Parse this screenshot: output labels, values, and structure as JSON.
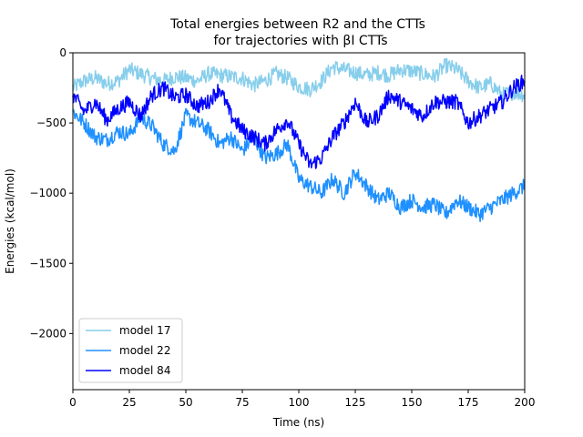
{
  "chart_data": {
    "type": "line",
    "title": "Total energies between R2 and the CTTs",
    "subtitle": "for trajectories with βI CTTs",
    "xlabel": "Time (ns)",
    "ylabel": "Energies (kcal/mol)",
    "xlim": [
      0,
      200
    ],
    "ylim": [
      -2400,
      0
    ],
    "xticks": [
      0,
      25,
      50,
      75,
      100,
      125,
      150,
      175,
      200
    ],
    "yticks": [
      0,
      -500,
      -1000,
      -1500,
      -2000
    ],
    "ytick_labels": [
      "0",
      "−500",
      "−1000",
      "−1500",
      "−2000"
    ],
    "grid": false,
    "legend": "bottom-left",
    "series": [
      {
        "name": "model 17",
        "color": "#87ceeb",
        "x": [
          0,
          5,
          10,
          15,
          20,
          25,
          30,
          35,
          40,
          45,
          50,
          55,
          60,
          65,
          70,
          75,
          80,
          85,
          90,
          95,
          100,
          105,
          110,
          115,
          120,
          125,
          130,
          135,
          140,
          145,
          150,
          155,
          160,
          165,
          170,
          175,
          180,
          185,
          190,
          195,
          200
        ],
        "y": [
          -250,
          -200,
          -180,
          -220,
          -200,
          -120,
          -150,
          -180,
          -200,
          -170,
          -180,
          -200,
          -150,
          -160,
          -170,
          -180,
          -230,
          -200,
          -150,
          -180,
          -240,
          -260,
          -200,
          -100,
          -120,
          -140,
          -160,
          -140,
          -160,
          -120,
          -130,
          -150,
          -170,
          -90,
          -120,
          -200,
          -250,
          -220,
          -300,
          -280,
          -300
        ]
      },
      {
        "name": "model 22",
        "color": "#1e90ff",
        "x": [
          0,
          5,
          10,
          15,
          20,
          25,
          30,
          35,
          40,
          45,
          50,
          55,
          60,
          65,
          70,
          75,
          80,
          85,
          90,
          95,
          100,
          105,
          110,
          115,
          120,
          125,
          130,
          135,
          140,
          145,
          150,
          155,
          160,
          165,
          170,
          175,
          180,
          185,
          190,
          195,
          200
        ],
        "y": [
          -420,
          -500,
          -600,
          -620,
          -560,
          -580,
          -460,
          -520,
          -650,
          -700,
          -450,
          -500,
          -550,
          -650,
          -600,
          -700,
          -600,
          -750,
          -720,
          -650,
          -900,
          -950,
          -1000,
          -900,
          -1000,
          -850,
          -950,
          -1050,
          -1000,
          -1100,
          -1050,
          -1100,
          -1080,
          -1150,
          -1050,
          -1100,
          -1150,
          -1100,
          -1050,
          -1000,
          -950
        ]
      },
      {
        "name": "model 84",
        "color": "#0000ff",
        "x": [
          0,
          5,
          10,
          15,
          20,
          25,
          30,
          35,
          40,
          45,
          50,
          55,
          60,
          65,
          70,
          75,
          80,
          85,
          90,
          95,
          100,
          105,
          110,
          115,
          120,
          125,
          130,
          135,
          140,
          145,
          150,
          155,
          160,
          165,
          170,
          175,
          180,
          185,
          190,
          195,
          200
        ],
        "y": [
          -300,
          -420,
          -350,
          -480,
          -400,
          -350,
          -450,
          -300,
          -250,
          -320,
          -300,
          -380,
          -350,
          -250,
          -450,
          -550,
          -600,
          -650,
          -550,
          -480,
          -650,
          -800,
          -750,
          -600,
          -500,
          -350,
          -500,
          -450,
          -300,
          -350,
          -400,
          -450,
          -350,
          -350,
          -350,
          -500,
          -450,
          -400,
          -350,
          -250,
          -200
        ]
      }
    ]
  }
}
